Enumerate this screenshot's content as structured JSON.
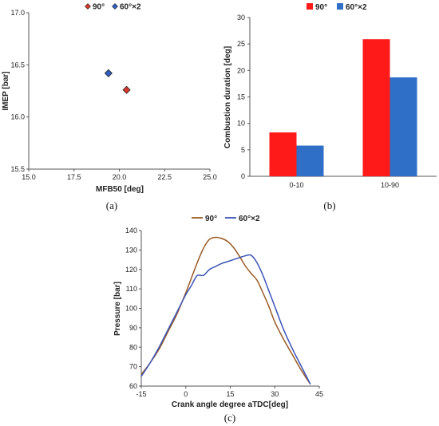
{
  "chart_data": [
    {
      "type": "scatter",
      "panel_label": "(a)",
      "xlabel": "MFB50 [deg]",
      "ylabel": "IMEP [bar]",
      "xlim": [
        15.0,
        25.0
      ],
      "ylim": [
        15.5,
        17.0
      ],
      "xticks": [
        "15.0",
        "17.5",
        "20.0",
        "22.5",
        "25.0"
      ],
      "yticks": [
        "15.5",
        "16.0",
        "16.5",
        "17.0"
      ],
      "legend_position": "top-center",
      "grid": false,
      "series": [
        {
          "name": "90°",
          "color": "#d9372a",
          "points": [
            {
              "x": 20.4,
              "y": 16.26
            }
          ]
        },
        {
          "name": "60°×2",
          "color": "#2f5ec4",
          "points": [
            {
              "x": 19.4,
              "y": 16.42
            }
          ]
        }
      ]
    },
    {
      "type": "bar",
      "panel_label": "(b)",
      "xlabel": "",
      "ylabel": "Combustion duration [deg]",
      "ylim": [
        0,
        30
      ],
      "yticks": [
        "0",
        "5",
        "10",
        "15",
        "20",
        "25",
        "30"
      ],
      "categories": [
        "0-10",
        "10-90"
      ],
      "legend_position": "top-center",
      "grid": false,
      "series": [
        {
          "name": "90°",
          "color": "#ff1a1a",
          "values": [
            8.3,
            25.9
          ]
        },
        {
          "name": "60°×2",
          "color": "#2f6fc8",
          "values": [
            5.8,
            18.7
          ]
        }
      ]
    },
    {
      "type": "line",
      "panel_label": "(c)",
      "xlabel": "Crank angle degree aTDC[deg]",
      "ylabel": "Pressure [bar]",
      "xlim": [
        -15,
        45
      ],
      "ylim": [
        60,
        140
      ],
      "xticks": [
        "-15",
        "0",
        "15",
        "30",
        "45"
      ],
      "yticks": [
        "60",
        "70",
        "80",
        "90",
        "100",
        "110",
        "120",
        "130",
        "140"
      ],
      "legend_position": "top-center",
      "grid": false,
      "series": [
        {
          "name": "90°",
          "color": "#9a5a22",
          "points": [
            [
              -15,
              66
            ],
            [
              -12,
              72
            ],
            [
              -9,
              79
            ],
            [
              -6,
              88
            ],
            [
              -3,
              97
            ],
            [
              0,
              108
            ],
            [
              2,
              116
            ],
            [
              4,
              124
            ],
            [
              6,
              131
            ],
            [
              8,
              135.5
            ],
            [
              10,
              136.5
            ],
            [
              12,
              136
            ],
            [
              14,
              134.5
            ],
            [
              16,
              131.5
            ],
            [
              18,
              127
            ],
            [
              20,
              122
            ],
            [
              22,
              118
            ],
            [
              24,
              114.5
            ],
            [
              26,
              108
            ],
            [
              28,
              101
            ],
            [
              30,
              93
            ],
            [
              33,
              84
            ],
            [
              36,
              76
            ],
            [
              39,
              68
            ],
            [
              42,
              61
            ]
          ]
        },
        {
          "name": "60°×2",
          "color": "#3c55b8",
          "points": [
            [
              -15,
              65
            ],
            [
              -12,
              72
            ],
            [
              -9,
              80
            ],
            [
              -6,
              89
            ],
            [
              -3,
              98
            ],
            [
              0,
              107
            ],
            [
              2,
              112
            ],
            [
              3,
              115
            ],
            [
              4,
              117
            ],
            [
              6,
              117
            ],
            [
              8,
              120
            ],
            [
              10,
              121.5
            ],
            [
              12,
              123
            ],
            [
              14,
              124
            ],
            [
              16,
              125
            ],
            [
              18,
              126
            ],
            [
              20,
              127
            ],
            [
              22,
              127.3
            ],
            [
              24,
              123.5
            ],
            [
              26,
              117
            ],
            [
              28,
              109
            ],
            [
              30,
              101
            ],
            [
              33,
              89
            ],
            [
              36,
              79
            ],
            [
              39,
              70
            ],
            [
              42,
              61
            ]
          ]
        }
      ]
    }
  ]
}
